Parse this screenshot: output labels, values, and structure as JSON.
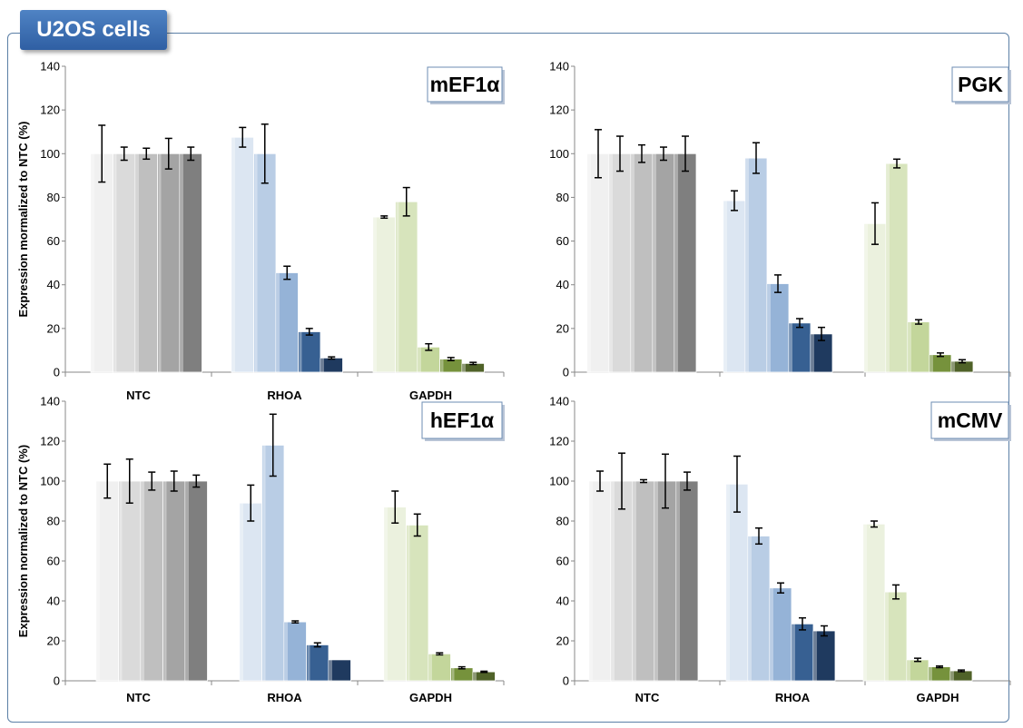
{
  "title": "U2OS cells",
  "palette": {
    "NTC": [
      "#f0f0f0",
      "#dadada",
      "#bfbfbf",
      "#a4a4a4",
      "#7f7f7f"
    ],
    "RHOA": [
      "#dce6f2",
      "#b9cde5",
      "#95b3d7",
      "#376092",
      "#1f3a5f"
    ],
    "GAPDH": [
      "#ebf1de",
      "#d7e4bc",
      "#c3d69b",
      "#76923c",
      "#4f6228"
    ],
    "error_bar": "#000000",
    "frame": "#5b7fa6",
    "badge": "#3a6db1"
  },
  "chart_data": [
    {
      "type": "bar",
      "title": "mEF1α",
      "ylabel": "Expression mormalized to NTC (%)",
      "xlabel": "",
      "ylim": [
        0,
        140
      ],
      "yticks": [
        0,
        20,
        40,
        60,
        80,
        100,
        120,
        140
      ],
      "grid": false,
      "categories": [
        "NTC",
        "RHOA",
        "GAPDH"
      ],
      "values": [
        [
          100,
          100,
          100,
          100,
          100
        ],
        [
          107.5,
          100,
          45.5,
          18.5,
          6.5
        ],
        [
          71,
          78,
          11.5,
          6,
          4
        ]
      ],
      "errors": [
        [
          13,
          3,
          2.5,
          7,
          3
        ],
        [
          4.5,
          13.5,
          3,
          1.5,
          0.5
        ],
        [
          0.5,
          6.5,
          1.5,
          0.7,
          0.5
        ]
      ]
    },
    {
      "type": "bar",
      "title": "PGK",
      "ylabel": "",
      "xlabel": "",
      "ylim": [
        0,
        140
      ],
      "yticks": [
        0,
        20,
        40,
        60,
        80,
        100,
        120,
        140
      ],
      "grid": false,
      "categories": [
        "",
        "",
        ""
      ],
      "values": [
        [
          100,
          100,
          100,
          100,
          100
        ],
        [
          78.5,
          98,
          40.5,
          22.5,
          17.5
        ],
        [
          68,
          95.5,
          23,
          8,
          5
        ]
      ],
      "errors": [
        [
          11,
          8,
          4,
          3,
          8
        ],
        [
          4.5,
          7,
          4,
          2,
          3
        ],
        [
          9.5,
          2,
          1,
          0.8,
          0.7
        ]
      ]
    },
    {
      "type": "bar",
      "title": "hEF1α",
      "ylabel": "Expression normalized to NTC (%)",
      "xlabel": "",
      "ylim": [
        0,
        140
      ],
      "yticks": [
        0,
        20,
        40,
        60,
        80,
        100,
        120,
        140
      ],
      "grid": false,
      "categories": [
        "NTC",
        "RHOA",
        "GAPDH"
      ],
      "values": [
        [
          100,
          100,
          100,
          100,
          100
        ],
        [
          89,
          118,
          29.5,
          18,
          10.5
        ],
        [
          87,
          78,
          13.5,
          6.5,
          4.5
        ]
      ],
      "errors": [
        [
          8.5,
          11,
          4.5,
          5,
          3
        ],
        [
          9,
          15.5,
          0.5,
          1,
          0
        ],
        [
          8,
          5.5,
          0.5,
          0.5,
          0.3
        ]
      ]
    },
    {
      "type": "bar",
      "title": "mCMV",
      "ylabel": "",
      "xlabel": "",
      "ylim": [
        0,
        140
      ],
      "yticks": [
        0,
        20,
        40,
        60,
        80,
        100,
        120,
        140
      ],
      "grid": false,
      "categories": [
        "NTC",
        "RHOA",
        "GAPDH"
      ],
      "values": [
        [
          100,
          100,
          100,
          100,
          100
        ],
        [
          98.5,
          72.5,
          46.5,
          28.5,
          25
        ],
        [
          78.5,
          44.5,
          10.5,
          7,
          5
        ]
      ],
      "errors": [
        [
          5,
          14,
          0.7,
          13.5,
          4.5
        ],
        [
          14,
          4,
          2.5,
          3,
          2.5
        ],
        [
          1.5,
          3.5,
          0.8,
          0.4,
          0.4
        ]
      ]
    }
  ]
}
